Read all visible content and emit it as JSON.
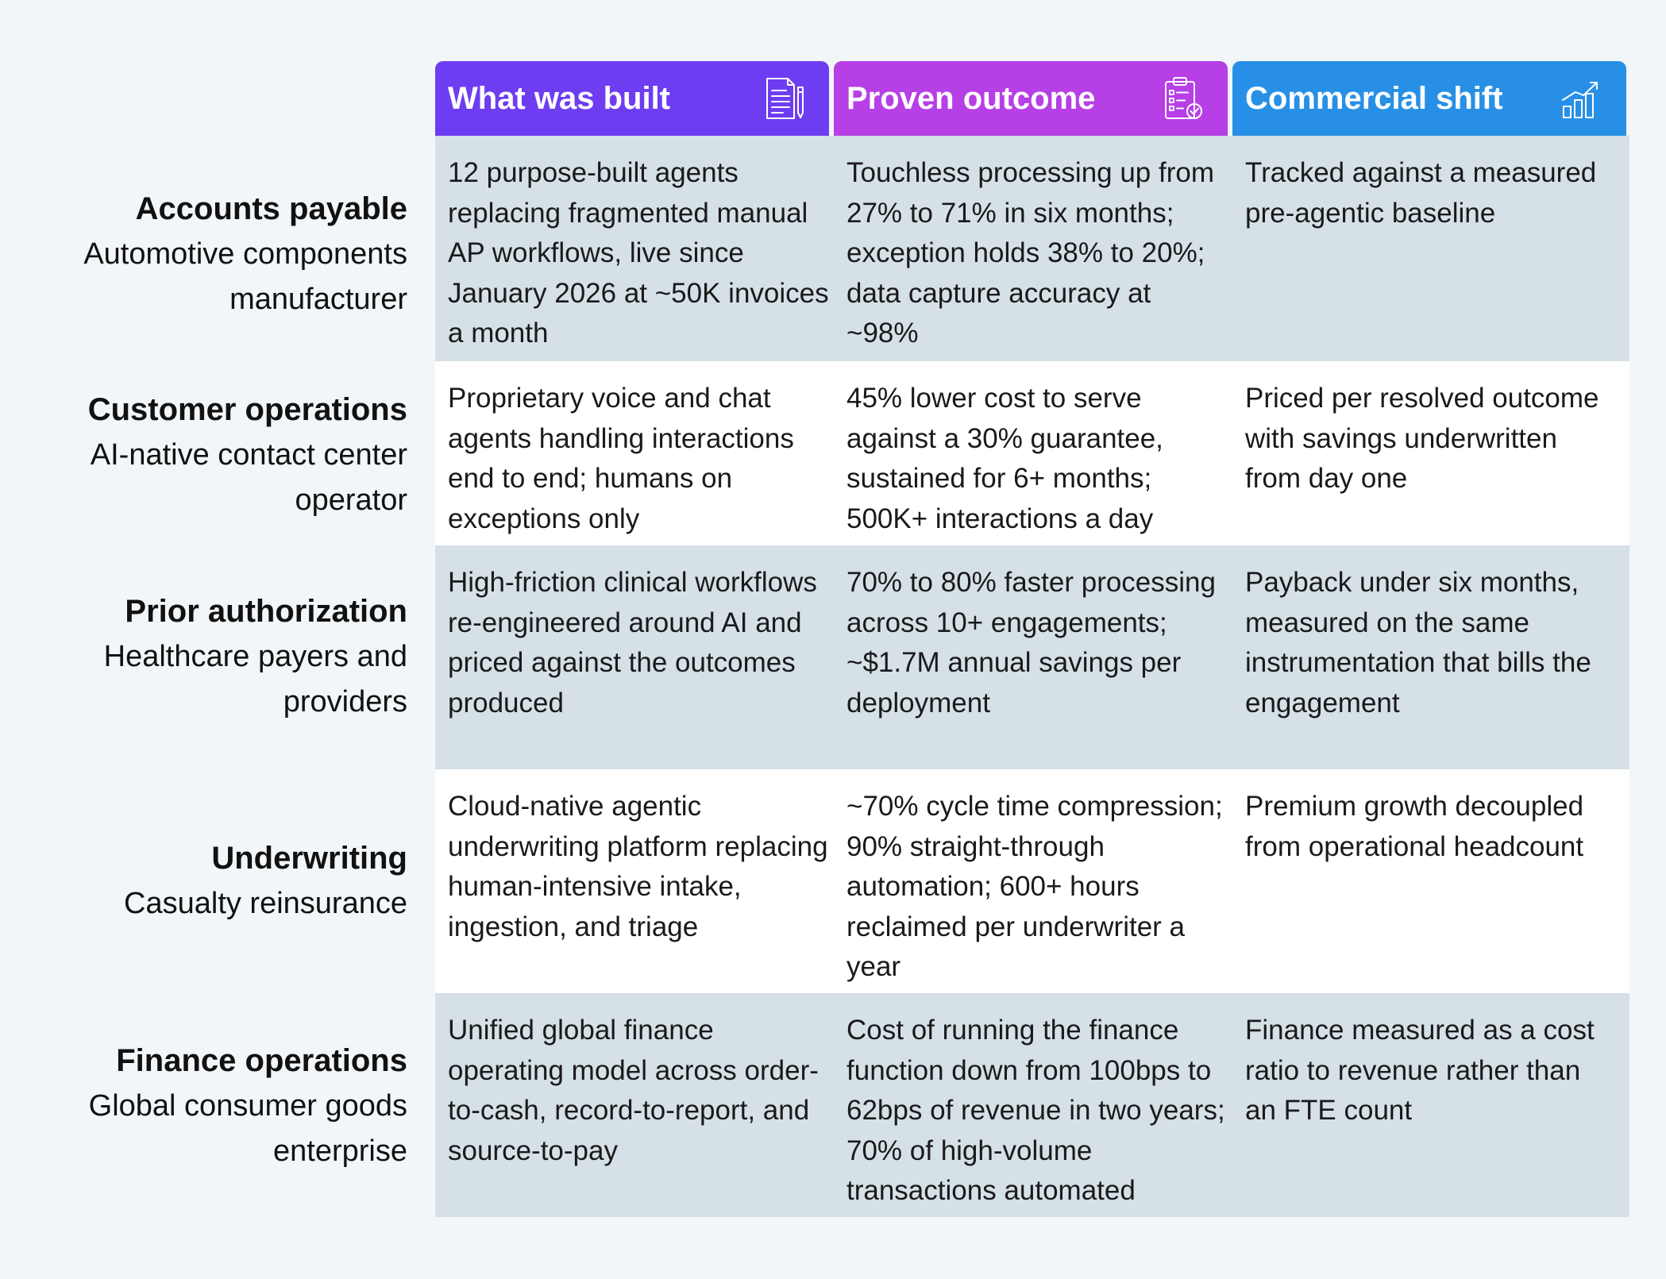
{
  "columns": [
    {
      "label": "What was built",
      "icon": "document-pen-icon",
      "color": "#6e3df2"
    },
    {
      "label": "Proven outcome",
      "icon": "clipboard-check-icon",
      "color": "#b63fe6"
    },
    {
      "label": "Commercial shift",
      "icon": "bar-chart-growth-icon",
      "color": "#2790e6"
    }
  ],
  "rows": [
    {
      "category": "Accounts payable",
      "subtitle_lines": [
        "Automotive components",
        "manufacturer"
      ],
      "built": "12 purpose-built agents replacing fragmented manual AP workflows, live since January 2026 at ~50K invoices a month",
      "outcome": "Touchless processing up from 27% to 71% in six months; exception holds 38% to 20%; data capture accuracy at ~98%",
      "commercial": "Tracked against a measured pre-agentic baseline"
    },
    {
      "category": "Customer operations",
      "subtitle_lines": [
        "AI-native contact center",
        "operator"
      ],
      "built": "Proprietary voice and chat agents handling interactions end to end; humans on exceptions only",
      "outcome": "45% lower cost to serve against a 30% guarantee, sustained for 6+ months; 500K+ interactions a day",
      "commercial": "Priced per resolved outcome with savings underwritten from day one"
    },
    {
      "category": "Prior authorization",
      "subtitle_lines": [
        "Healthcare payers and",
        "providers"
      ],
      "built": "High-friction clinical workflows re-engineered around AI and priced against the outcomes produced",
      "outcome": "70% to 80% faster processing across 10+ engagements; ~$1.7M annual savings per deployment",
      "commercial": "Payback under six months, measured on the same instrumentation that bills the engagement"
    },
    {
      "category": "Underwriting",
      "subtitle_lines": [
        "Casualty reinsurance"
      ],
      "built": "Cloud-native agentic underwriting platform replacing human-intensive intake, ingestion, and triage",
      "outcome": "~70% cycle time compression; 90% straight-through automation; 600+ hours reclaimed per underwriter a year",
      "commercial": "Premium growth decoupled from operational headcount"
    },
    {
      "category": "Finance operations",
      "subtitle_lines": [
        "Global consumer goods",
        "enterprise"
      ],
      "built": "Unified global finance operating model across order-to-cash, record-to-report, and source-to-pay",
      "outcome": "Cost of running the finance function down from 100bps to 62bps of revenue in two years; 70% of high-volume transactions automated",
      "commercial": "Finance measured as a cost ratio to revenue rather than an FTE count"
    }
  ]
}
